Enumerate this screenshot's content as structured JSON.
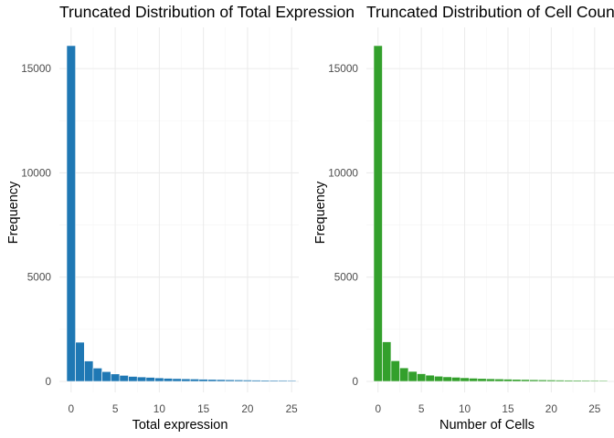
{
  "chart_data": [
    {
      "type": "bar",
      "subtype": "histogram",
      "title": "Truncated Distribution of Total Expression",
      "xlabel": "Total expression",
      "ylabel": "Frequency",
      "color": "#1f78b4",
      "x": [
        0,
        1,
        2,
        3,
        4,
        5,
        6,
        7,
        8,
        9,
        10,
        11,
        12,
        13,
        14,
        15,
        16,
        17,
        18,
        19,
        20,
        21,
        22,
        23,
        24,
        25
      ],
      "values": [
        16100,
        1880,
        980,
        640,
        470,
        360,
        290,
        240,
        215,
        195,
        170,
        150,
        135,
        125,
        115,
        105,
        95,
        88,
        80,
        73,
        67,
        62,
        57,
        53,
        50,
        46
      ],
      "xlim": [
        -0.5,
        25.5
      ],
      "ylim": [
        0,
        16100
      ],
      "xticks": [
        0,
        5,
        10,
        15,
        20,
        25
      ],
      "yticks": [
        0,
        5000,
        10000,
        15000
      ],
      "grid": true,
      "legend": "none"
    },
    {
      "type": "bar",
      "subtype": "histogram",
      "title": "Truncated Distribution of Cell Counts",
      "xlabel": "Number of Cells",
      "ylabel": "Frequency",
      "color": "#33a02c",
      "x": [
        0,
        1,
        2,
        3,
        4,
        5,
        6,
        7,
        8,
        9,
        10,
        11,
        12,
        13,
        14,
        15,
        16,
        17,
        18,
        19,
        20,
        21,
        22,
        23,
        24,
        25,
        26
      ],
      "values": [
        16100,
        1900,
        990,
        650,
        480,
        370,
        300,
        250,
        220,
        200,
        175,
        155,
        140,
        128,
        118,
        108,
        98,
        90,
        82,
        75,
        69,
        64,
        59,
        55,
        51,
        47,
        44
      ],
      "xlim": [
        -0.5,
        26.5
      ],
      "ylim": [
        0,
        16100
      ],
      "xticks": [
        0,
        5,
        10,
        15,
        20,
        25
      ],
      "yticks": [
        0,
        5000,
        10000,
        15000
      ],
      "grid": true,
      "legend": "none"
    }
  ]
}
